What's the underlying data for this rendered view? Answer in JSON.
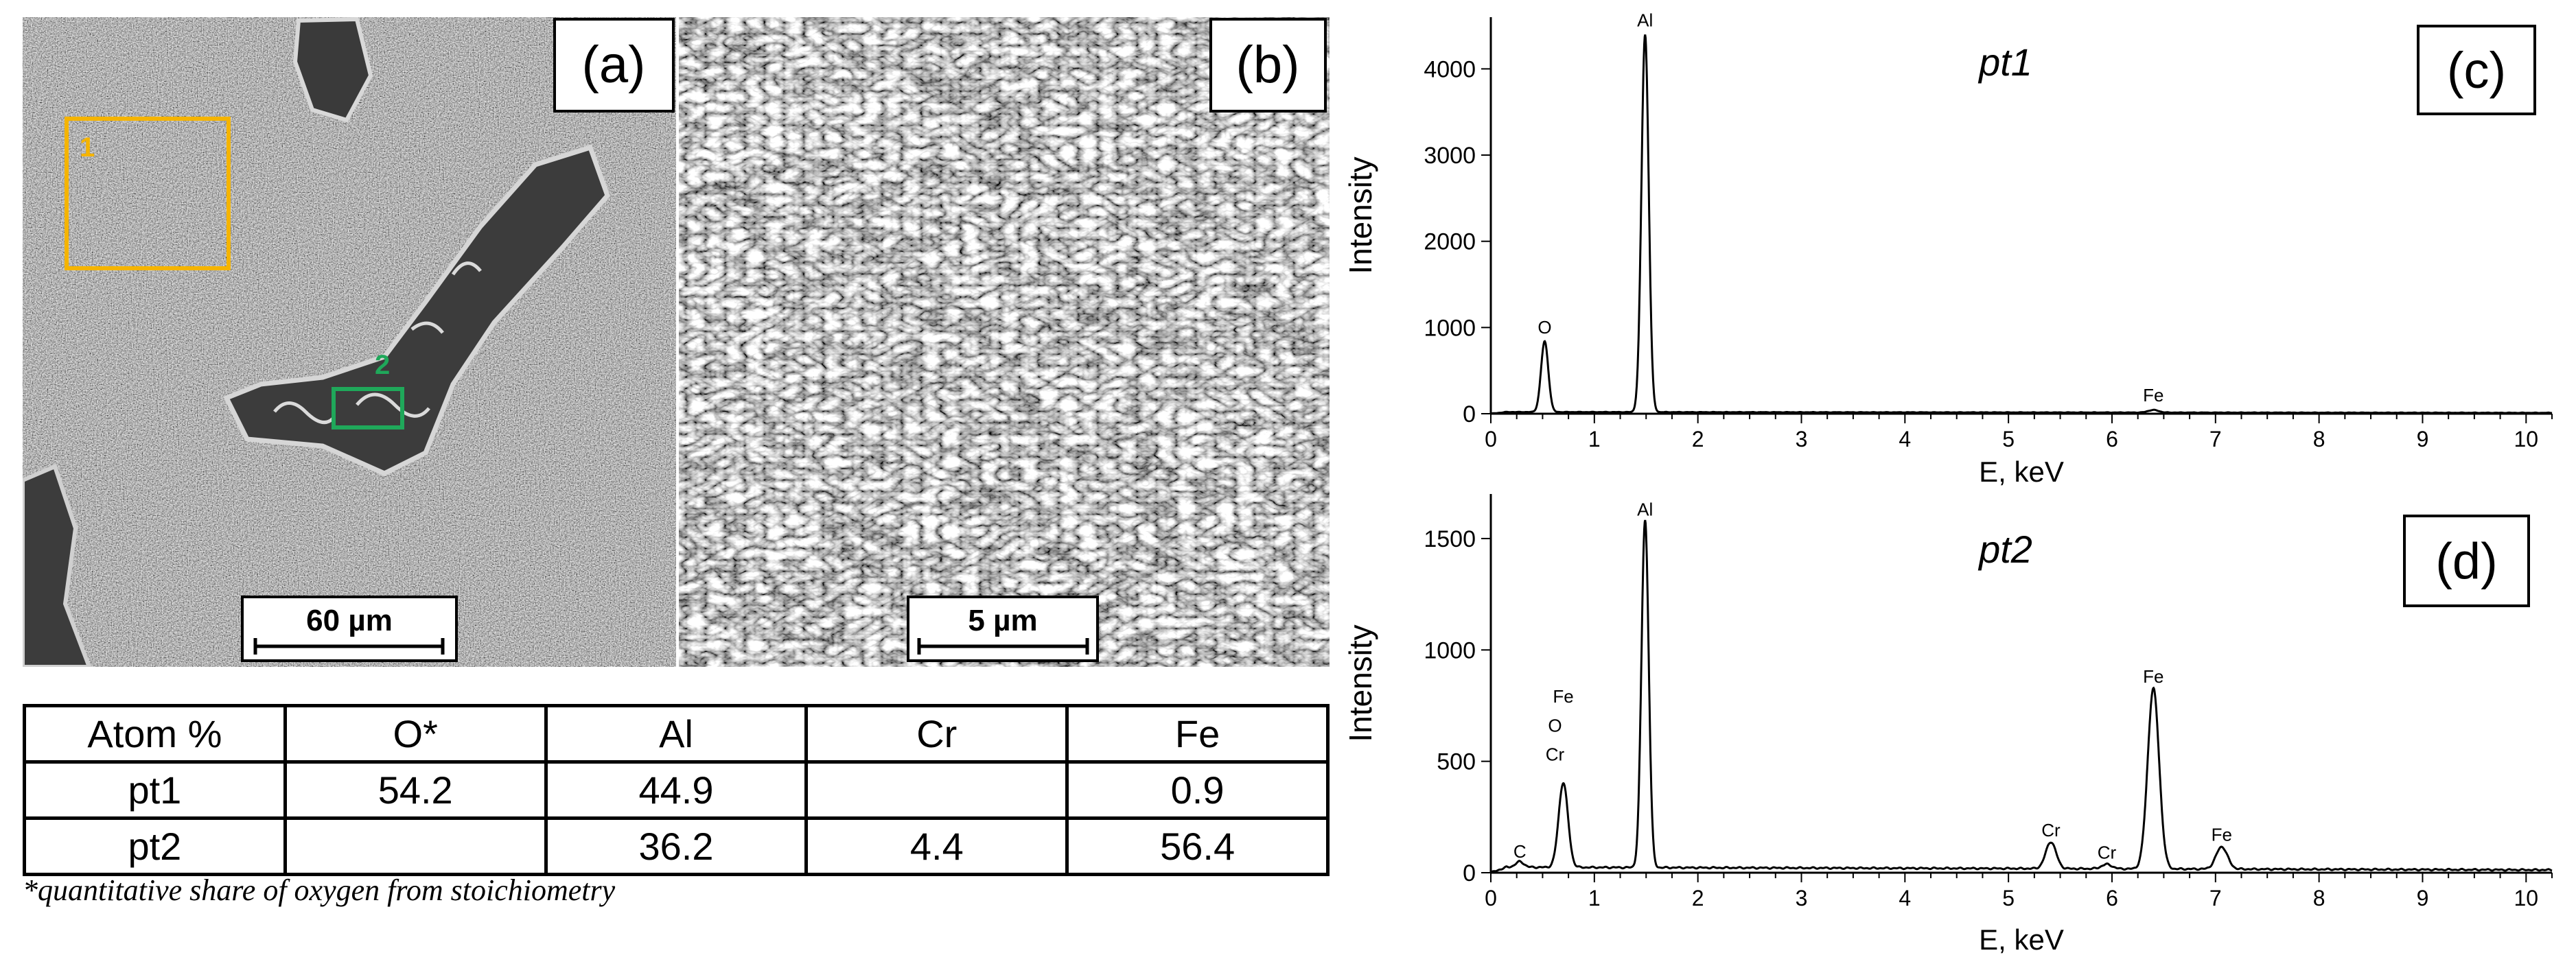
{
  "micrographs": {
    "panel_a": {
      "label": "(a)",
      "scale_bar": "60 µm",
      "regions": [
        {
          "marker": "1",
          "color": "#f5b400"
        },
        {
          "marker": "2",
          "color": "#1fa85a"
        }
      ]
    },
    "panel_b": {
      "label": "(b)",
      "scale_bar": "5 µm"
    }
  },
  "table": {
    "headers": [
      "Atom %",
      "O*",
      "Al",
      "Cr",
      "Fe"
    ],
    "rows": [
      [
        "pt1",
        "54.2",
        "44.9",
        "",
        "0.9"
      ],
      [
        "pt2",
        "",
        "36.2",
        "4.4",
        "56.4"
      ]
    ],
    "footnote": "*quantitative share of oxygen from stoichiometry"
  },
  "chart_data": [
    {
      "type": "line",
      "panel_label": "(c)",
      "title": "pt1",
      "xlabel": "E, keV",
      "ylabel": "Intensity",
      "xlim": [
        0,
        10.25
      ],
      "ylim": [
        0,
        4600
      ],
      "xticks": [
        0,
        1,
        2,
        3,
        4,
        5,
        6,
        7,
        8,
        9,
        10
      ],
      "yticks": [
        0,
        1000,
        2000,
        3000,
        4000
      ],
      "background": 20,
      "peaks": [
        {
          "element": "O",
          "energy_keV": 0.52,
          "intensity": 820,
          "width": 0.035
        },
        {
          "element": "Al",
          "energy_keV": 1.49,
          "intensity": 4380,
          "width": 0.035
        },
        {
          "element": "Fe",
          "energy_keV": 6.4,
          "intensity": 30,
          "width": 0.05
        }
      ],
      "peak_labels": [
        {
          "text": "O",
          "energy_keV": 0.52,
          "intensity": 820
        },
        {
          "text": "Al",
          "energy_keV": 1.49,
          "intensity": 4380
        },
        {
          "text": "Fe",
          "energy_keV": 6.4,
          "intensity": 30
        }
      ]
    },
    {
      "type": "line",
      "panel_label": "(d)",
      "title": "pt2",
      "xlabel": "E, keV",
      "ylabel": "Intensity",
      "xlim": [
        0,
        10.25
      ],
      "ylim": [
        0,
        1700
      ],
      "xticks": [
        0,
        1,
        2,
        3,
        4,
        5,
        6,
        7,
        8,
        9,
        10
      ],
      "yticks": [
        0,
        500,
        1000,
        1500
      ],
      "background": 25,
      "peaks": [
        {
          "element": "C",
          "energy_keV": 0.28,
          "intensity": 25,
          "width": 0.04
        },
        {
          "element": "O/Cr/Fe",
          "energy_keV": 0.7,
          "intensity": 380,
          "width": 0.045
        },
        {
          "element": "Al",
          "energy_keV": 1.49,
          "intensity": 1560,
          "width": 0.035
        },
        {
          "element": "Cr",
          "energy_keV": 5.41,
          "intensity": 120,
          "width": 0.05
        },
        {
          "element": "Cr",
          "energy_keV": 5.95,
          "intensity": 20,
          "width": 0.05
        },
        {
          "element": "Fe",
          "energy_keV": 6.4,
          "intensity": 810,
          "width": 0.055
        },
        {
          "element": "Fe",
          "energy_keV": 7.06,
          "intensity": 100,
          "width": 0.055
        }
      ],
      "peak_labels": [
        {
          "text": "C",
          "energy_keV": 0.28,
          "intensity": 25
        },
        {
          "text": "Cr",
          "energy_keV": 0.62,
          "intensity": 460
        },
        {
          "text": "O",
          "energy_keV": 0.62,
          "intensity": 590
        },
        {
          "text": "Fe",
          "energy_keV": 0.7,
          "intensity": 720
        },
        {
          "text": "Al",
          "energy_keV": 1.49,
          "intensity": 1560
        },
        {
          "text": "Cr",
          "energy_keV": 5.41,
          "intensity": 120
        },
        {
          "text": "Cr",
          "energy_keV": 5.95,
          "intensity": 20
        },
        {
          "text": "Fe",
          "energy_keV": 6.4,
          "intensity": 810
        },
        {
          "text": "Fe",
          "energy_keV": 7.06,
          "intensity": 100
        }
      ]
    }
  ]
}
